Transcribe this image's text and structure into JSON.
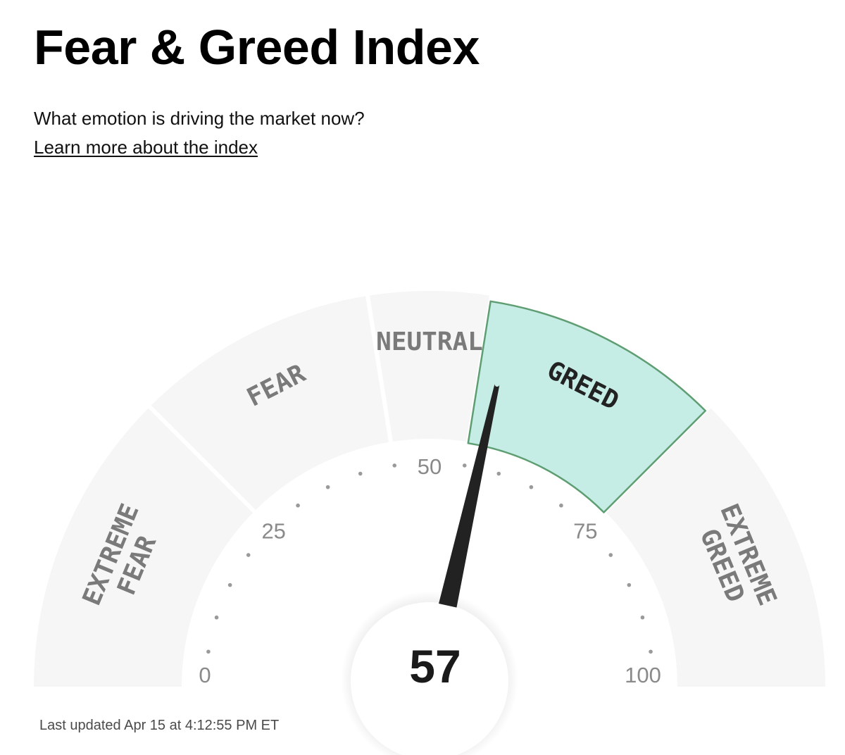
{
  "header": {
    "title": "Fear & Greed Index",
    "subtitle": "What emotion is driving the market now?",
    "learn_more_link": "Learn more about the index"
  },
  "chart_data": {
    "type": "gauge",
    "value": 57,
    "value_label": "57",
    "range": [
      0,
      100
    ],
    "tick_labels": [
      {
        "value": 0,
        "label": "0"
      },
      {
        "value": 25,
        "label": "25"
      },
      {
        "value": 50,
        "label": "50"
      },
      {
        "value": 75,
        "label": "75"
      },
      {
        "value": 100,
        "label": "100"
      }
    ],
    "zones": [
      {
        "id": "extreme-fear",
        "lines": [
          "EXTREME",
          "FEAR"
        ],
        "from": 0,
        "to": 25
      },
      {
        "id": "fear",
        "lines": [
          "FEAR"
        ],
        "from": 25,
        "to": 45
      },
      {
        "id": "neutral",
        "lines": [
          "NEUTRAL"
        ],
        "from": 45,
        "to": 55
      },
      {
        "id": "greed",
        "lines": [
          "GREED"
        ],
        "from": 55,
        "to": 75
      },
      {
        "id": "extreme-greed",
        "lines": [
          "EXTREME",
          "GREED"
        ],
        "from": 75,
        "to": 100
      }
    ],
    "active_zone": "greed",
    "colors": {
      "zone_fill": "#f6f6f6",
      "zone_text": "#7a7a7a",
      "active_fill": "#c6ede5",
      "active_stroke": "#5e9e72",
      "active_text": "#222222",
      "needle": "#222222",
      "dots": "#9a9a9a"
    }
  },
  "footer": {
    "last_updated": "Last updated Apr 15 at 4:12:55 PM ET"
  }
}
